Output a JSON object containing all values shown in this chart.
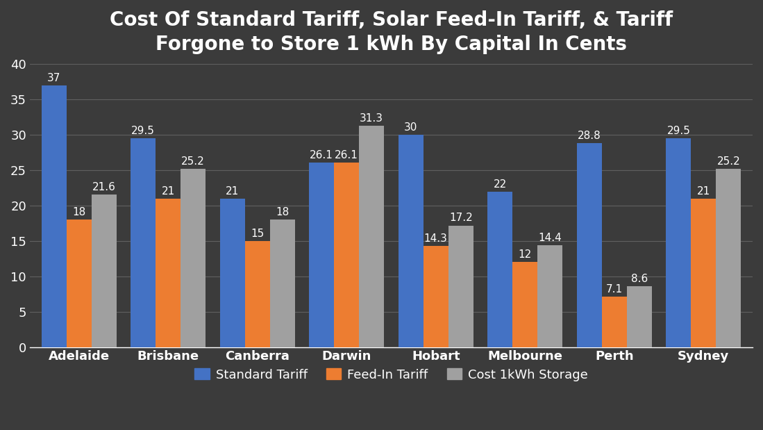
{
  "title": "Cost Of Standard Tariff, Solar Feed-In Tariff, & Tariff\nForgone to Store 1 kWh By Capital In Cents",
  "categories": [
    "Adelaide",
    "Brisbane",
    "Canberra",
    "Darwin",
    "Hobart",
    "Melbourne",
    "Perth",
    "Sydney"
  ],
  "standard_tariff": [
    37,
    29.5,
    21,
    26.1,
    30,
    22,
    28.8,
    29.5
  ],
  "feedin_tariff": [
    18,
    21,
    15,
    26.1,
    14.3,
    12,
    7.1,
    21
  ],
  "cost_storage": [
    21.6,
    25.2,
    18,
    31.3,
    17.2,
    14.4,
    8.6,
    25.2
  ],
  "bar_color_standard": "#4472C4",
  "bar_color_feedin": "#ED7D31",
  "bar_color_storage": "#A0A0A0",
  "background_color": "#3B3B3B",
  "axes_background_color": "#3B3B3B",
  "text_color": "#FFFFFF",
  "grid_color": "#606060",
  "ylim": [
    0,
    40
  ],
  "yticks": [
    0,
    5,
    10,
    15,
    20,
    25,
    30,
    35,
    40
  ],
  "title_fontsize": 20,
  "label_fontsize": 13,
  "tick_fontsize": 13,
  "value_fontsize": 11,
  "legend_labels": [
    "Standard Tariff",
    "Feed-In Tariff",
    "Cost 1kWh Storage"
  ],
  "bar_width": 0.28
}
